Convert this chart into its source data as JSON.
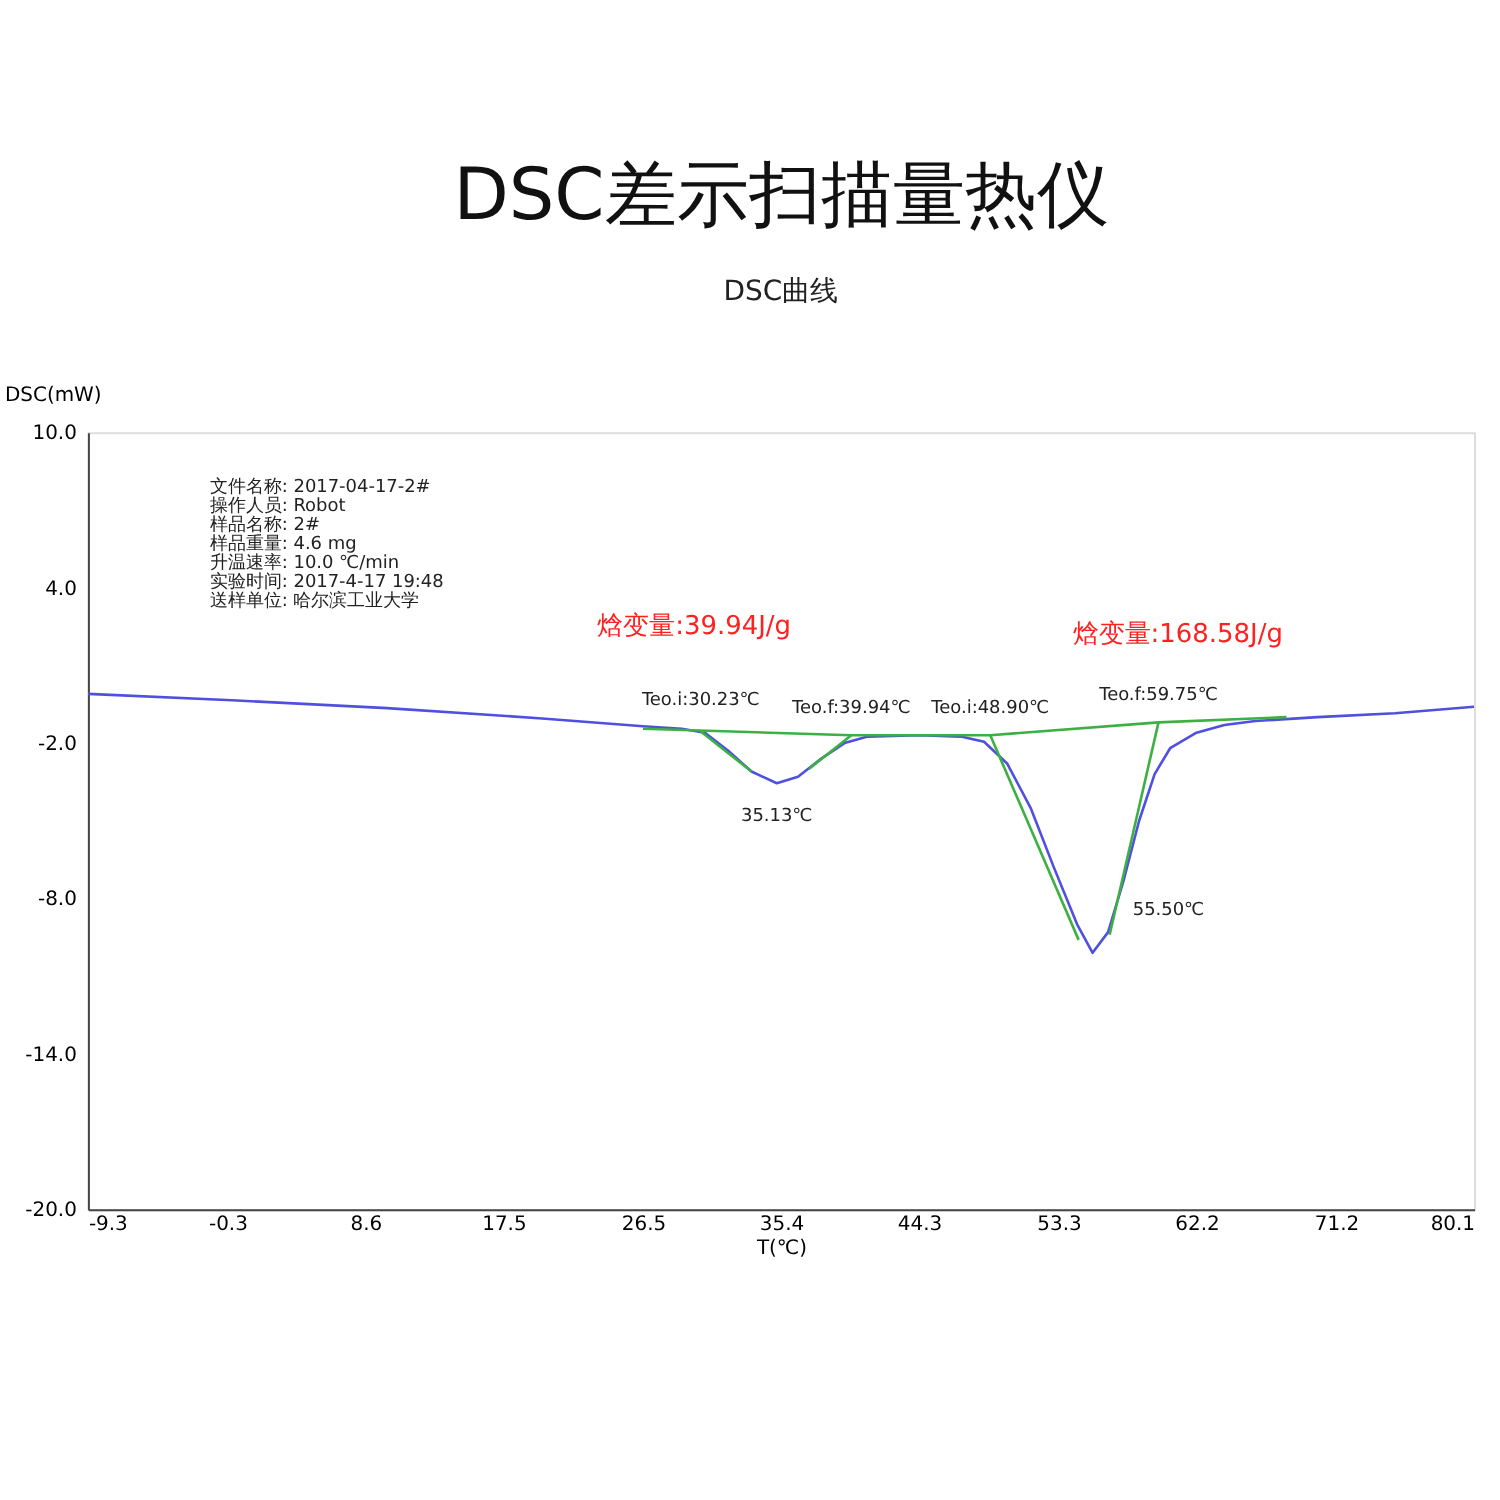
{
  "chart_data": {
    "type": "line",
    "title": "DSC差示扫描量热仪",
    "subtitle": "DSC曲线",
    "xlabel": "T(℃)",
    "ylabel": "DSC(mW)",
    "xlim": [
      -9.3,
      80.1
    ],
    "ylim": [
      -20,
      10
    ],
    "xticks": [
      -9.3,
      -0.3,
      8.6,
      17.5,
      26.5,
      35.4,
      44.3,
      53.3,
      62.2,
      71.2,
      80.1
    ],
    "yticks": [
      {
        "value": 10,
        "label": "10.0"
      },
      {
        "value": 4,
        "label": "4.0"
      },
      {
        "value": -2,
        "label": "-2.0"
      },
      {
        "value": -8,
        "label": "-8.0"
      },
      {
        "value": -14,
        "label": "-14.0"
      },
      {
        "value": -20,
        "label": "-20.0"
      }
    ],
    "line_style": "solid",
    "series": [
      {
        "color": "#4f4fe0",
        "x": [
          -9.3,
          0,
          10,
          20,
          26.5,
          29,
          30.5,
          32,
          33.5,
          35.13,
          36.5,
          38,
          39.5,
          41,
          44.3,
          47,
          48.5,
          50,
          51.5,
          53,
          54.5,
          55.5,
          56.5,
          57.5,
          58.5,
          59.5,
          60.5,
          62.2,
          64,
          66,
          70,
          75,
          80.1
        ],
        "values": [
          -0.1,
          -0.35,
          -0.65,
          -1.05,
          -1.35,
          -1.45,
          -1.6,
          -2.3,
          -3.1,
          -3.55,
          -3.3,
          -2.6,
          -2.0,
          -1.75,
          -1.7,
          -1.75,
          -1.95,
          -2.8,
          -4.5,
          -6.8,
          -9.0,
          -10.1,
          -9.3,
          -7.3,
          -5.0,
          -3.2,
          -2.2,
          -1.6,
          -1.3,
          -1.15,
          -1.0,
          -0.85,
          -0.6
        ]
      },
      {
        "color": "#3cb043",
        "x": [
          26.5,
          39.94,
          48.9,
          59.75,
          68
        ],
        "values": [
          -1.45,
          -1.7,
          -1.7,
          -1.2,
          -1.0
        ]
      },
      {
        "color": "#3cb043",
        "x": [
          30.23,
          33.5
        ],
        "values": [
          -1.55,
          -3.1
        ]
      },
      {
        "color": "#3cb043",
        "x": [
          39.94,
          37.2
        ],
        "values": [
          -1.7,
          -3.0
        ]
      },
      {
        "color": "#3cb043",
        "x": [
          48.9,
          54.6
        ],
        "values": [
          -1.7,
          -9.6
        ]
      },
      {
        "color": "#3cb043",
        "x": [
          59.75,
          56.6
        ],
        "values": [
          -1.2,
          -9.4
        ]
      }
    ],
    "annotations": [
      "文件名称:  2017-04-17-2#",
      "操作人员:  Robot",
      "样品名称:  2#",
      "样品重量:  4.6 mg",
      "升温速率:  10.0 ℃/min",
      "实验时间:  2017-4-17 19:48",
      "送样单位:  哈尔滨工业大学",
      "焓变量:39.94J/g",
      "焓变量:168.58J/g",
      {
        "text": "Teo.i:30.23℃",
        "x": 30.23,
        "y": -1.55
      },
      {
        "text": "Teo.f:39.94℃",
        "x": 39.94,
        "y": -1.7
      },
      {
        "text": "Teo.i:48.90℃",
        "x": 48.9,
        "y": -1.7
      },
      {
        "text": "Teo.f:59.75℃",
        "x": 59.75,
        "y": -1.2
      },
      {
        "text": "35.13℃",
        "x": 35.13,
        "y": -3.55
      },
      {
        "text": "55.50℃",
        "x": 55.5,
        "y": -10.1
      }
    ]
  }
}
